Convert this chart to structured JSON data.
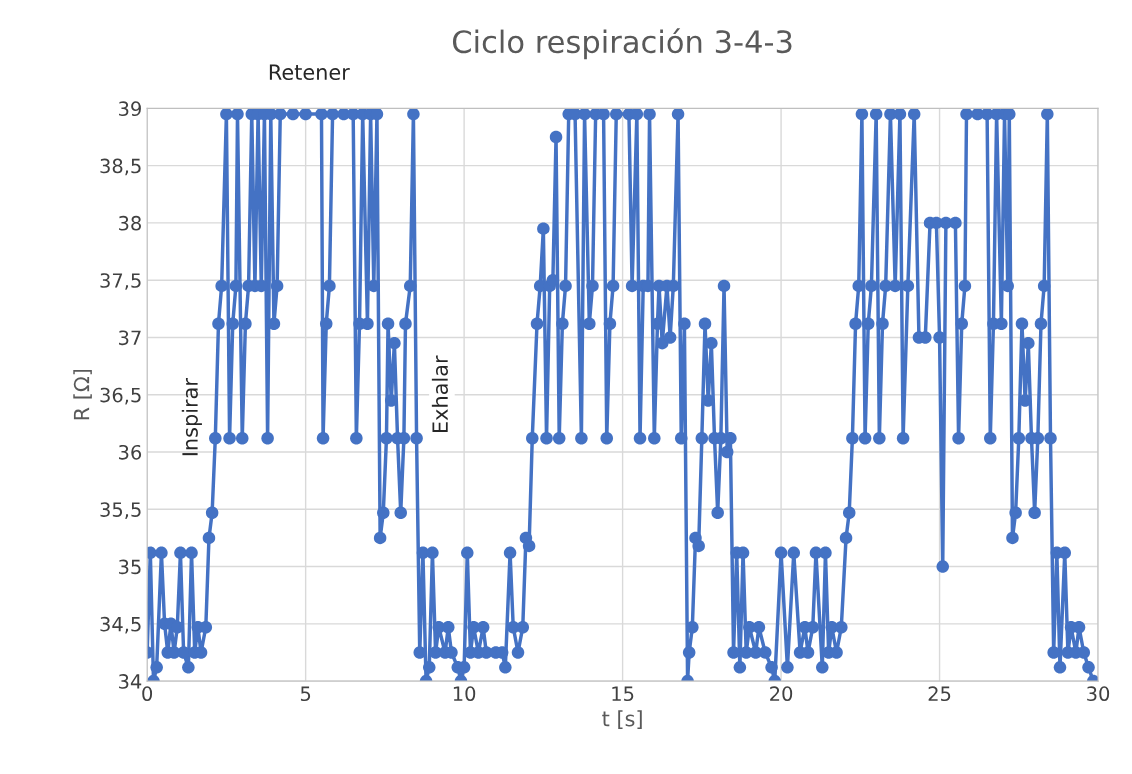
{
  "chart_data": {
    "type": "line",
    "title": "Ciclo respiración 3-4-3",
    "xlabel": "t [s]",
    "ylabel": "R [Ω]",
    "xlim": [
      0,
      30
    ],
    "xticks": [
      0,
      5,
      10,
      15,
      20,
      25,
      30
    ],
    "ylim": [
      34,
      39
    ],
    "yticks": [
      {
        "value": 34,
        "label": "34"
      },
      {
        "value": 34.5,
        "label": "34,5"
      },
      {
        "value": 35,
        "label": "35"
      },
      {
        "value": 35.5,
        "label": "35,5"
      },
      {
        "value": 36,
        "label": "36"
      },
      {
        "value": 36.5,
        "label": "36,5"
      },
      {
        "value": 37,
        "label": "37"
      },
      {
        "value": 37.5,
        "label": "37,5"
      },
      {
        "value": 38,
        "label": "38"
      },
      {
        "value": 38.5,
        "label": "38,5"
      },
      {
        "value": 39,
        "label": "39"
      }
    ],
    "grid": true,
    "marker": "circle",
    "line_style": "solid",
    "annotations": [
      "Retener",
      "Inspirar",
      "Exhalar"
    ],
    "series": [
      {
        "color": "#4472c4",
        "x": [
          0,
          0.1,
          0.2,
          0.3,
          0.45,
          0.55,
          0.65,
          0.75,
          0.85,
          0.95,
          1.05,
          1.15,
          1.3,
          1.4,
          1.5,
          1.6,
          1.7,
          1.85,
          1.95,
          2.05,
          2.15,
          2.25,
          2.35,
          2.5,
          2.6,
          2.7,
          2.8,
          2.85,
          3.0,
          3.1,
          3.2,
          3.3,
          3.4,
          3.5,
          3.6,
          3.7,
          3.8,
          3.9,
          4.0,
          4.1,
          4.2,
          4.6,
          5.0,
          5.5,
          5.55,
          5.65,
          5.75,
          5.85,
          6.2,
          6.5,
          6.6,
          6.7,
          6.8,
          6.95,
          7.05,
          7.15,
          7.25,
          7.35,
          7.45,
          7.55,
          7.6,
          7.7,
          7.8,
          7.9,
          8.0,
          8.1,
          8.15,
          8.3,
          8.4,
          8.5,
          8.6,
          8.7,
          8.8,
          8.9,
          9.0,
          9.1,
          9.2,
          9.4,
          9.5,
          9.6,
          9.8,
          9.9,
          10.0,
          10.1,
          10.2,
          10.3,
          10.45,
          10.6,
          10.7,
          11.0,
          11.2,
          11.3,
          11.45,
          11.55,
          11.7,
          11.85,
          11.95,
          12.05,
          12.15,
          12.3,
          12.4,
          12.5,
          12.6,
          12.7,
          12.8,
          12.9,
          13.0,
          13.1,
          13.2,
          13.3,
          13.5,
          13.7,
          13.8,
          13.95,
          14.05,
          14.15,
          14.4,
          14.5,
          14.6,
          14.7,
          14.8,
          15.2,
          15.3,
          15.45,
          15.55,
          15.65,
          15.8,
          15.85,
          16.0,
          16.1,
          16.15,
          16.25,
          16.4,
          16.5,
          16.6,
          16.75,
          16.85,
          16.95,
          17.05,
          17.1,
          17.2,
          17.3,
          17.4,
          17.5,
          17.6,
          17.7,
          17.8,
          17.9,
          18.0,
          18.1,
          18.2,
          18.3,
          18.4,
          18.5,
          18.6,
          18.7,
          18.8,
          18.9,
          19.0,
          19.2,
          19.3,
          19.5,
          19.7,
          19.8,
          20.0,
          20.2,
          20.4,
          20.6,
          20.75,
          20.85,
          21.0,
          21.1,
          21.3,
          21.4,
          21.5,
          21.6,
          21.75,
          21.9,
          22.05,
          22.15,
          22.25,
          22.35,
          22.45,
          22.55,
          22.65,
          22.75,
          22.85,
          23.0,
          23.1,
          23.2,
          23.3,
          23.45,
          23.6,
          23.75,
          23.85,
          24.0,
          24.2,
          24.35,
          24.55,
          24.7,
          24.9,
          25.0,
          25.1,
          25.2,
          25.5,
          25.6,
          25.7,
          25.8,
          25.85,
          26.2,
          26.5,
          26.6,
          26.7,
          26.8,
          26.95,
          27.05,
          27.15,
          27.2,
          27.3,
          27.4,
          27.5,
          27.6,
          27.7,
          27.8,
          27.9,
          28.0,
          28.1,
          28.2,
          28.3,
          28.4,
          28.5,
          28.6,
          28.7,
          28.8,
          28.95,
          29.05,
          29.15,
          29.3,
          29.4,
          29.55,
          29.7,
          29.85
        ],
        "values": [
          34.25,
          35.12,
          34,
          34.12,
          35.12,
          34.5,
          34.25,
          34.5,
          34.25,
          34.47,
          35.12,
          34.25,
          34.12,
          35.12,
          34.25,
          34.47,
          34.25,
          34.47,
          35.25,
          35.47,
          36.12,
          37.12,
          37.45,
          38.95,
          36.12,
          37.12,
          37.45,
          38.95,
          36.12,
          37.12,
          37.45,
          38.95,
          37.45,
          38.95,
          37.45,
          38.95,
          36.12,
          38.95,
          37.12,
          37.45,
          38.95,
          38.95,
          38.95,
          38.95,
          36.12,
          37.12,
          37.45,
          38.95,
          38.95,
          38.95,
          36.12,
          37.12,
          38.95,
          37.12,
          38.95,
          37.45,
          38.95,
          35.25,
          35.47,
          36.12,
          37.12,
          36.45,
          36.95,
          36.12,
          35.47,
          36.12,
          37.12,
          37.45,
          38.95,
          36.12,
          34.25,
          35.12,
          34,
          34.12,
          35.12,
          34.25,
          34.47,
          34.25,
          34.47,
          34.25,
          34.12,
          34,
          34.12,
          35.12,
          34.25,
          34.47,
          34.25,
          34.47,
          34.25,
          34.25,
          34.25,
          34.12,
          35.12,
          34.47,
          34.25,
          34.47,
          35.25,
          35.18,
          36.12,
          37.12,
          37.45,
          37.95,
          36.12,
          37.45,
          37.5,
          38.75,
          36.12,
          37.12,
          37.45,
          38.95,
          38.95,
          36.12,
          38.95,
          37.12,
          37.45,
          38.95,
          38.95,
          36.12,
          37.12,
          37.45,
          38.95,
          38.95,
          37.45,
          38.95,
          36.12,
          37.45,
          37.45,
          38.95,
          36.12,
          37.12,
          37.45,
          36.95,
          37.45,
          37.0,
          37.45,
          38.95,
          36.12,
          37.12,
          34,
          34.25,
          34.47,
          35.25,
          35.18,
          36.12,
          37.12,
          36.45,
          36.95,
          36.12,
          35.47,
          36.12,
          37.45,
          36.0,
          36.12,
          34.25,
          35.12,
          34.12,
          35.12,
          34.25,
          34.47,
          34.25,
          34.47,
          34.25,
          34.12,
          34,
          35.12,
          34.12,
          35.12,
          34.25,
          34.47,
          34.25,
          34.47,
          35.12,
          34.12,
          35.12,
          34.25,
          34.47,
          34.25,
          34.47,
          35.25,
          35.47,
          36.12,
          37.12,
          37.45,
          38.95,
          36.12,
          37.12,
          37.45,
          38.95,
          36.12,
          37.12,
          37.45,
          38.95,
          37.45,
          38.95,
          36.12,
          37.45,
          38.95,
          37.0,
          37.0,
          38.0,
          38.0,
          37.0,
          35.0,
          38.0,
          38.0,
          36.12,
          37.12,
          37.45,
          38.95,
          38.95,
          38.95,
          36.12,
          37.12,
          38.95,
          37.12,
          38.95,
          37.45,
          38.95,
          35.25,
          35.47,
          36.12,
          37.12,
          36.45,
          36.95,
          36.12,
          35.47,
          36.12,
          37.12,
          37.45,
          38.95,
          36.12,
          34.25,
          35.12,
          34.12,
          35.12,
          34.25,
          34.47,
          34.25,
          34.47,
          34.25,
          34.12,
          34
        ]
      }
    ]
  }
}
